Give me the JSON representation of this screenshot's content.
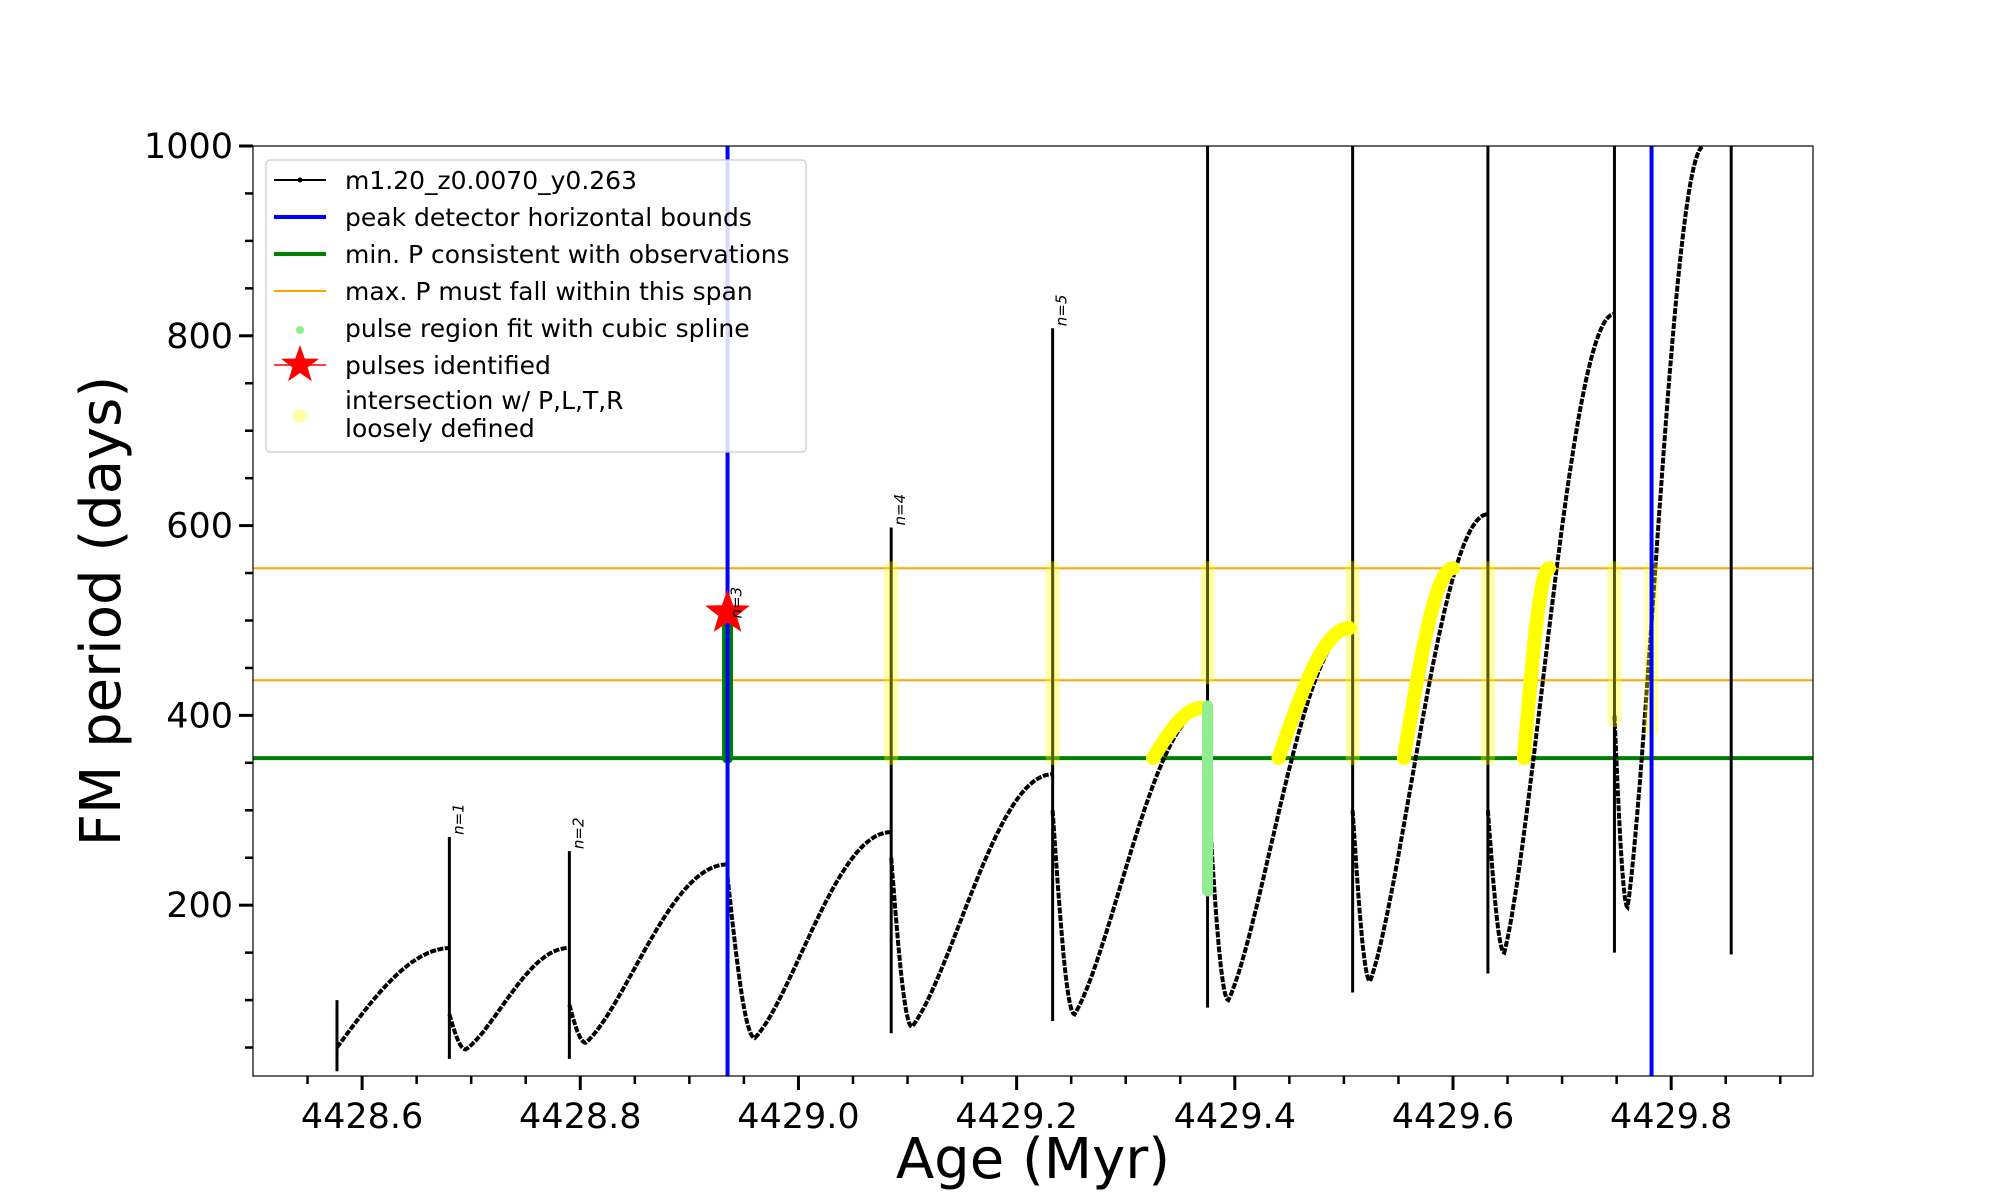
{
  "chart_data": {
    "type": "line",
    "xlabel": "Age (Myr)",
    "ylabel": "FM period (days)",
    "xlim": [
      4428.5,
      4429.93
    ],
    "ylim": [
      20,
      1000
    ],
    "x_ticks": [
      4428.6,
      4428.8,
      4429.0,
      4429.2,
      4429.4,
      4429.6,
      4429.8
    ],
    "x_tick_labels": [
      "4428.6",
      "4428.8",
      "4429.0",
      "4429.2",
      "4429.4",
      "4429.6",
      "4429.8"
    ],
    "y_ticks": [
      200,
      400,
      600,
      800,
      1000
    ],
    "y_tick_labels": [
      "200",
      "400",
      "600",
      "800",
      "1000"
    ],
    "grid": false,
    "legend_position": "top-left",
    "legend": [
      {
        "key": "track",
        "label": "m1.20_z0.0070_y0.263",
        "color": "#000000"
      },
      {
        "key": "peak_bounds",
        "label": "peak detector horizontal bounds",
        "color": "#0000ff"
      },
      {
        "key": "min_p",
        "label": "min. P consistent with observations",
        "color": "#008000"
      },
      {
        "key": "max_p",
        "label": "max. P must fall within this span",
        "color": "#ffa500"
      },
      {
        "key": "spline",
        "label": "pulse region fit with cubic spline",
        "color": "#90ee90"
      },
      {
        "key": "pulses",
        "label": "pulses identified",
        "color": "#ff0000"
      },
      {
        "key": "loose",
        "label": "intersection w/ P,L,T,R",
        "label2": "loosely defined",
        "color": "#ffff00"
      }
    ],
    "vertical_lines": [
      {
        "name": "peak-bound-left",
        "x": 4428.935,
        "color": "#0000ff"
      },
      {
        "name": "peak-bound-right",
        "x": 4429.782,
        "color": "#0000ff"
      }
    ],
    "horizontal_lines": [
      {
        "name": "min-period-line",
        "y": 355,
        "color": "#008000"
      },
      {
        "name": "max-period-upper",
        "y": 555,
        "color": "#ffa500"
      },
      {
        "name": "max-period-lower",
        "y": 437,
        "color": "#ffa500"
      }
    ],
    "track_segments": [
      {
        "x0": 4428.577,
        "x1": 4428.68,
        "y_start": 50,
        "y_end": 155,
        "y_min": 50,
        "dip_x": 4428.583,
        "shape": "rise"
      },
      {
        "x0": 4428.68,
        "x1": 4428.79,
        "y_start": 85,
        "y_end": 155,
        "y_min": 48,
        "dip_x": 4428.695,
        "shape": "dip-rise"
      },
      {
        "x0": 4428.79,
        "x1": 4428.935,
        "y_start": 95,
        "y_end": 243,
        "y_min": 55,
        "dip_x": 4428.805,
        "shape": "dip-rise"
      },
      {
        "x0": 4428.935,
        "x1": 4429.085,
        "y_start": 230,
        "y_end": 277,
        "y_min": 60,
        "dip_x": 4428.96,
        "shape": "dip-rise"
      },
      {
        "x0": 4429.085,
        "x1": 4429.233,
        "y_start": 250,
        "y_end": 338,
        "y_min": 72,
        "dip_x": 4429.104,
        "shape": "dip-rise"
      },
      {
        "x0": 4429.233,
        "x1": 4429.375,
        "y_start": 300,
        "y_end": 408,
        "y_min": 85,
        "dip_x": 4429.253,
        "shape": "dip-rise"
      },
      {
        "x0": 4429.375,
        "x1": 4429.508,
        "y_start": 330,
        "y_end": 492,
        "y_min": 100,
        "dip_x": 4429.394,
        "shape": "dip-rise"
      },
      {
        "x0": 4429.508,
        "x1": 4429.632,
        "y_start": 300,
        "y_end": 612,
        "y_min": 120,
        "dip_x": 4429.524,
        "shape": "dip-rise"
      },
      {
        "x0": 4429.632,
        "x1": 4429.748,
        "y_start": 300,
        "y_end": 823,
        "y_min": 150,
        "dip_x": 4429.647,
        "shape": "dip-rise"
      },
      {
        "x0": 4429.748,
        "x1": 4429.83,
        "y_start": 400,
        "y_end": 1000,
        "y_min": 198,
        "dip_x": 4429.76,
        "shape": "dip-rise"
      }
    ],
    "spikes": [
      {
        "x": 4428.577,
        "y_low": 25,
        "y_high": 100
      },
      {
        "x": 4428.68,
        "y_low": 38,
        "y_high": 272
      },
      {
        "x": 4428.79,
        "y_low": 38,
        "y_high": 257
      },
      {
        "x": 4428.935,
        "y_low": 55,
        "y_high": 277
      },
      {
        "x": 4429.085,
        "y_low": 65,
        "y_high": 598
      },
      {
        "x": 4429.233,
        "y_low": 78,
        "y_high": 808
      },
      {
        "x": 4429.375,
        "y_low": 92,
        "y_high": 1000
      },
      {
        "x": 4429.508,
        "y_low": 108,
        "y_high": 1000
      },
      {
        "x": 4429.632,
        "y_low": 128,
        "y_high": 1000
      },
      {
        "x": 4429.748,
        "y_low": 150,
        "y_high": 1000
      },
      {
        "x": 4429.855,
        "y_low": 148,
        "y_high": 1000
      }
    ],
    "pulse_labels": [
      {
        "text": "n=1",
        "x": 4428.68,
        "y": 272
      },
      {
        "text": "n=2",
        "x": 4428.79,
        "y": 257
      },
      {
        "text": "n=3",
        "x": 4428.935,
        "y": 500
      },
      {
        "text": "n=4",
        "x": 4429.085,
        "y": 598
      },
      {
        "text": "n=5",
        "x": 4429.233,
        "y": 808
      }
    ],
    "pulses_identified": [
      {
        "x": 4428.935,
        "y": 508
      }
    ],
    "spline_fits": [
      {
        "x": 4428.935,
        "y0": 355,
        "y1": 500,
        "color": "#008000"
      },
      {
        "x": 4429.375,
        "y0": 215,
        "y1": 410,
        "color": "#90ee90"
      }
    ],
    "loose_vertical": [
      {
        "x": 4429.085,
        "y0": 355,
        "y1": 555
      },
      {
        "x": 4429.233,
        "y0": 355,
        "y1": 555
      },
      {
        "x": 4429.375,
        "y0": 440,
        "y1": 555
      },
      {
        "x": 4429.508,
        "y0": 355,
        "y1": 555
      },
      {
        "x": 4429.632,
        "y0": 355,
        "y1": 555
      },
      {
        "x": 4429.748,
        "y0": 395,
        "y1": 555
      },
      {
        "x": 4429.782,
        "y0": 385,
        "y1": 555
      }
    ],
    "loose_curves": [
      {
        "x0": 4429.325,
        "x1": 4429.37,
        "y0": 355,
        "y1": 408
      },
      {
        "x0": 4429.44,
        "x1": 4429.505,
        "y0": 355,
        "y1": 492
      },
      {
        "x0": 4429.555,
        "x1": 4429.6,
        "y0": 355,
        "y1": 555
      },
      {
        "x0": 4429.665,
        "x1": 4429.688,
        "y0": 355,
        "y1": 555
      }
    ]
  }
}
